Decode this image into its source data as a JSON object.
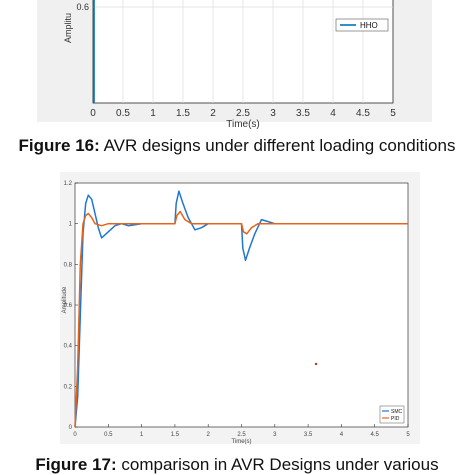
{
  "figure16": {
    "label": "Figure 16:",
    "caption": " AVR designs under different loading conditions",
    "chart_data": {
      "type": "line",
      "xlabel": "Time(s)",
      "ylabel": "Amplitu",
      "xlim": [
        0,
        5
      ],
      "x_ticks": [
        "0",
        "0.5",
        "1",
        "1.5",
        "2",
        "2.5",
        "3",
        "3.5",
        "4",
        "4.5",
        "5"
      ],
      "y_ticks": [
        "0.6"
      ],
      "legend": [
        "HHO"
      ],
      "legend_position": "top-right",
      "grid": true,
      "series_color": "#0072BD"
    }
  },
  "figure17": {
    "label": "Figure 17:",
    "caption": " comparison in AVR Designs under various",
    "chart_data": {
      "type": "line",
      "xlabel": "Time(s)",
      "ylabel": "Amplitude",
      "xlim": [
        0,
        5
      ],
      "ylim": [
        0,
        1.2
      ],
      "x_ticks": [
        "0",
        "0.5",
        "1",
        "1.5",
        "2",
        "2.5",
        "3",
        "3.5",
        "4",
        "4.5",
        "5"
      ],
      "y_ticks": [
        "0",
        "0.2",
        "0.4",
        "0.6",
        "0.8",
        "1",
        "1.2"
      ],
      "grid": false,
      "legend_position": "bottom-right",
      "series": [
        {
          "name": "SMC",
          "color": "#1f77d0",
          "x": [
            0,
            0.04,
            0.08,
            0.12,
            0.16,
            0.2,
            0.25,
            0.3,
            0.35,
            0.4,
            0.5,
            0.6,
            0.7,
            0.8,
            1.0,
            1.2,
            1.5,
            1.52,
            1.56,
            1.62,
            1.7,
            1.8,
            1.9,
            2.0,
            2.2,
            2.5,
            2.52,
            2.56,
            2.62,
            2.7,
            2.8,
            2.9,
            3.0,
            3.2,
            5.0
          ],
          "y": [
            0,
            0.15,
            0.55,
            0.95,
            1.1,
            1.14,
            1.12,
            1.05,
            0.98,
            0.93,
            0.96,
            0.99,
            1.0,
            0.99,
            1.0,
            1.0,
            1.0,
            1.1,
            1.16,
            1.1,
            1.03,
            0.97,
            0.98,
            1.0,
            1.0,
            1.0,
            0.88,
            0.82,
            0.88,
            0.95,
            1.02,
            1.01,
            1.0,
            1.0,
            1.0
          ]
        },
        {
          "name": "PID",
          "color": "#e8631a",
          "x": [
            0,
            0.04,
            0.08,
            0.12,
            0.16,
            0.2,
            0.25,
            0.3,
            0.4,
            0.5,
            1.0,
            1.5,
            1.53,
            1.58,
            1.65,
            1.75,
            2.0,
            2.5,
            2.53,
            2.58,
            2.65,
            2.75,
            3.0,
            5.0
          ],
          "y": [
            0,
            0.3,
            0.8,
            1.0,
            1.04,
            1.05,
            1.03,
            1.0,
            0.99,
            1.0,
            1.0,
            1.0,
            1.04,
            1.06,
            1.02,
            1.0,
            1.0,
            1.0,
            0.96,
            0.95,
            0.98,
            1.0,
            1.0,
            1.0
          ]
        }
      ]
    }
  }
}
